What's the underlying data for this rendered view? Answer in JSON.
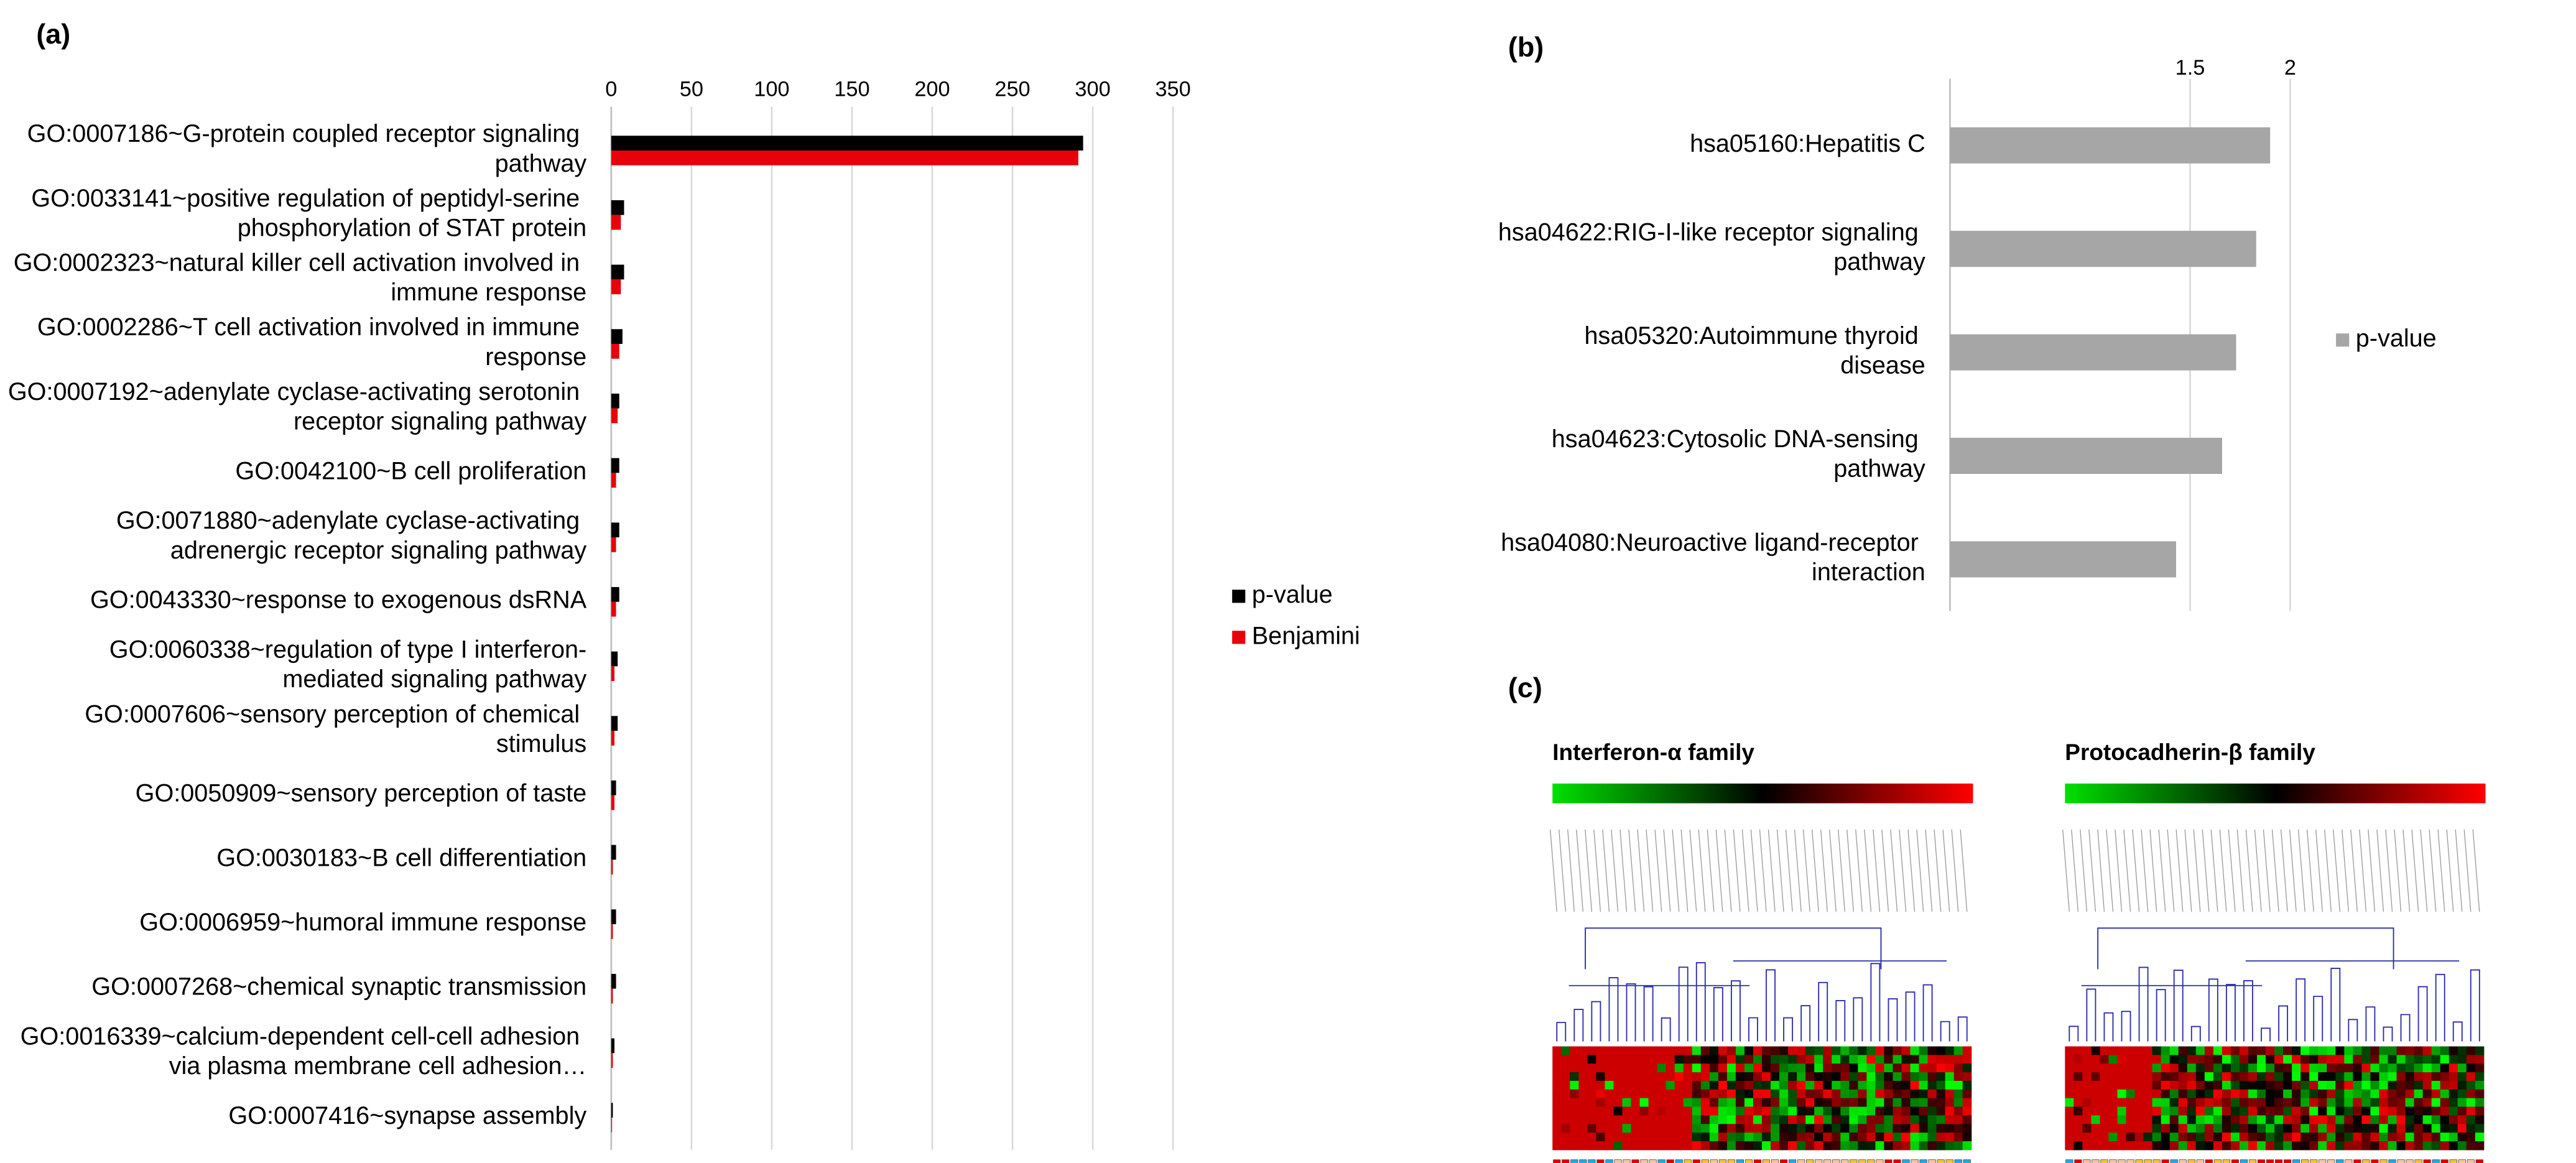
{
  "panel_labels": [
    "(a)",
    "(b)",
    "(c)"
  ],
  "chart_data": [
    {
      "type": "bar",
      "categories": [
        "GO:0007186~G-protein coupled receptor signaling pathway",
        "GO:0033141~positive regulation of peptidyl-serine phosphorylation of STAT protein",
        "GO:0002323~natural killer cell activation involved in immune response",
        "GO:0002286~T cell activation involved in immune response",
        "GO:0007192~adenylate cyclase-activating serotonin receptor signaling pathway",
        "GO:0042100~B cell proliferation",
        "GO:0071880~adenylate cyclase-activating adrenergic receptor signaling pathway",
        "GO:0043330~response to exogenous dsRNA",
        "GO:0060338~regulation of type I interferon-mediated signaling pathway",
        "GO:0007606~sensory perception of chemical stimulus",
        "GO:0050909~sensory perception of taste",
        "GO:0030183~B cell differentiation",
        "GO:0006959~humoral immune response",
        "GO:0007268~chemical synaptic transmission",
        "GO:0016339~calcium-dependent cell-cell adhesion via plasma membrane cell adhesion…",
        "GO:0007416~synapse assembly"
      ],
      "series": [
        {
          "name": "p-value",
          "color": "#000000",
          "values": [
            294,
            8,
            8,
            7,
            5,
            5,
            5,
            5,
            4,
            4,
            3,
            3,
            3,
            3,
            2,
            1
          ]
        },
        {
          "name": "Benjamini",
          "color": "#e8000b",
          "values": [
            291,
            6,
            6,
            5,
            4,
            3,
            3,
            3,
            2,
            2,
            2,
            1,
            1,
            1,
            1,
            0.5
          ]
        }
      ],
      "xlim": [
        0,
        350
      ],
      "xticks": [
        0,
        50,
        100,
        150,
        200,
        250,
        300,
        350
      ],
      "grid": true,
      "legend": "right"
    },
    {
      "type": "bar",
      "categories": [
        "hsa05160:Hepatitis C",
        "hsa04622:RIG-I-like receptor signaling pathway",
        "hsa05320:Autoimmune thyroid disease",
        "hsa04623:Cytosolic DNA-sensing pathway",
        "hsa04080:Neuroactive ligand-receptor interaction"
      ],
      "series": [
        {
          "name": "p-value",
          "color": "#a6a6a6",
          "values": [
            1.9,
            1.83,
            1.73,
            1.66,
            1.43
          ]
        }
      ],
      "xlim": [
        0.3,
        2.5
      ],
      "xticks": [
        1.5,
        2
      ],
      "grid": true,
      "legend": "right"
    }
  ],
  "heatmaps": [
    {
      "title": "Interferon-α family"
    },
    {
      "title": "Protocadherin-β family"
    }
  ]
}
